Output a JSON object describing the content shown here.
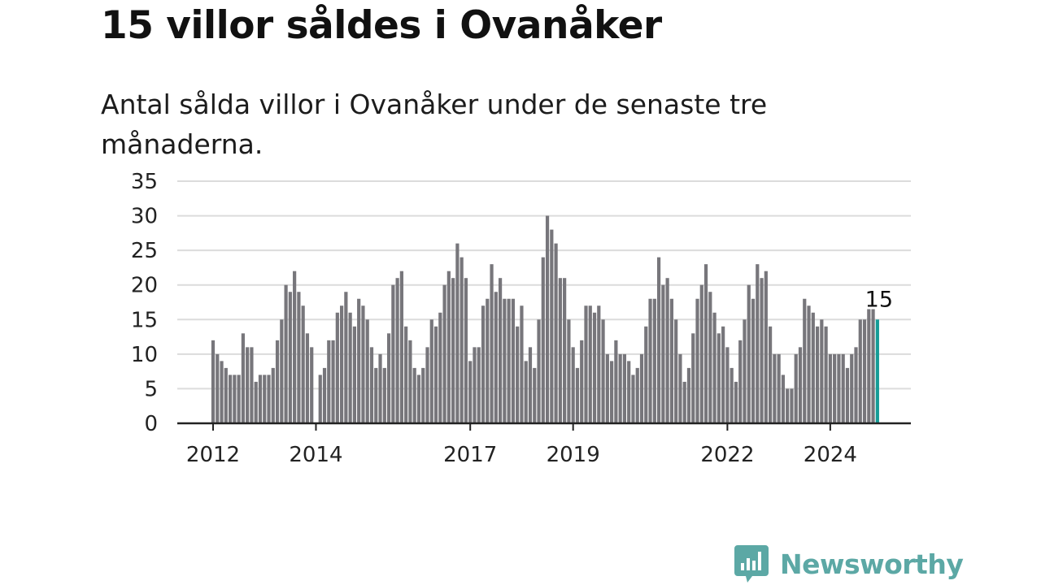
{
  "header": {
    "title": "15 villor såldes i Ovanåker",
    "subtitle": "Antal sålda villor i Ovanåker under de senaste tre månaderna."
  },
  "brand": {
    "name": "Newsworthy",
    "color": "#5ca8a5",
    "icon": "bar-chart-speech-bubble-icon"
  },
  "colors": {
    "bar": "#77767b",
    "highlight": "#159c96",
    "grid": "#dcdcdc",
    "axis": "#222222"
  },
  "chart_data": {
    "type": "bar",
    "x_tick_labels": [
      "2012",
      "2014",
      "2017",
      "2019",
      "2022",
      "2024"
    ],
    "x_tick_bar_index": [
      0,
      24,
      60,
      84,
      120,
      144
    ],
    "ylim": [
      0,
      35
    ],
    "y_ticks": [
      0,
      5,
      10,
      15,
      20,
      25,
      30,
      35
    ],
    "grid": true,
    "values": [
      12,
      10,
      9,
      8,
      7,
      7,
      7,
      13,
      11,
      11,
      6,
      7,
      7,
      7,
      8,
      12,
      15,
      20,
      19,
      22,
      19,
      17,
      13,
      11,
      0,
      7,
      8,
      12,
      12,
      16,
      17,
      19,
      16,
      14,
      18,
      17,
      15,
      11,
      8,
      10,
      8,
      13,
      20,
      21,
      22,
      14,
      12,
      8,
      7,
      8,
      11,
      15,
      14,
      16,
      20,
      22,
      21,
      26,
      24,
      21,
      9,
      11,
      11,
      17,
      18,
      23,
      19,
      21,
      18,
      18,
      18,
      14,
      17,
      9,
      11,
      8,
      15,
      24,
      30,
      28,
      26,
      21,
      21,
      15,
      11,
      8,
      12,
      17,
      17,
      16,
      17,
      15,
      10,
      9,
      12,
      10,
      10,
      9,
      7,
      8,
      10,
      14,
      18,
      18,
      24,
      20,
      21,
      18,
      15,
      10,
      6,
      8,
      13,
      18,
      20,
      23,
      19,
      16,
      13,
      14,
      11,
      8,
      6,
      12,
      15,
      20,
      18,
      23,
      21,
      22,
      14,
      10,
      10,
      7,
      5,
      5,
      10,
      11,
      18,
      17,
      16,
      14,
      15,
      14,
      10,
      10,
      10,
      10,
      8,
      10,
      11,
      15,
      15,
      16.5,
      16.5,
      15
    ],
    "highlight": {
      "index": 155,
      "label": "15"
    }
  }
}
